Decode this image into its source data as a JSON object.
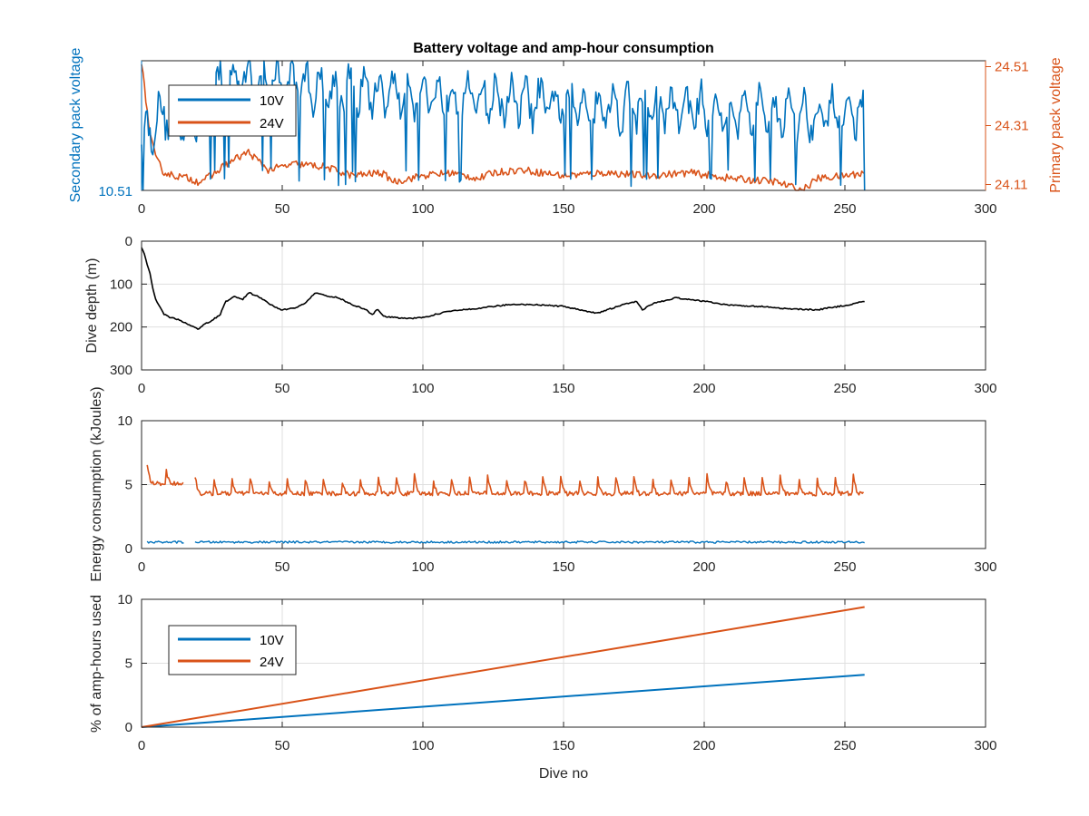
{
  "colors": {
    "blue": "#0072BD",
    "orange": "#D95319",
    "black": "#000000",
    "grid": "#dfdfdf",
    "axis": "#262626"
  },
  "chart_data": [
    {
      "type": "line",
      "title": "Battery voltage and amp-hour consumption",
      "xlim": [
        0,
        300
      ],
      "x_ticks": [
        "0",
        "50",
        "100",
        "150",
        "200",
        "250",
        "300"
      ],
      "grid": false,
      "legend": {
        "placement": "top-left",
        "entries": [
          "10V",
          "24V"
        ]
      },
      "y_left": {
        "label": "Secondary pack voltage",
        "ylim": [
          10.51,
          10.56
        ],
        "tick_labels": [
          "10.51"
        ],
        "color": "#0072BD"
      },
      "y_right": {
        "label": "Primary pack voltage",
        "ylim": [
          24.09,
          24.53
        ],
        "tick_labels": [
          "24.11",
          "24.31",
          "24.51"
        ],
        "color": "#D95319"
      },
      "series": [
        {
          "name": "10V",
          "axis": "left",
          "color": "#0072BD",
          "style": "noisy-oscillating",
          "x": [
            0,
            3,
            6,
            10,
            14,
            18,
            22,
            25,
            30,
            40,
            50,
            60,
            80,
            100,
            120,
            135,
            150,
            175,
            200,
            225,
            240,
            257
          ],
          "y": [
            10.532,
            10.534,
            10.538,
            10.54,
            10.535,
            10.537,
            10.542,
            10.548,
            10.552,
            10.553,
            10.551,
            10.55,
            10.548,
            10.547,
            10.546,
            10.544,
            10.543,
            10.542,
            10.541,
            10.54,
            10.539,
            10.54
          ],
          "amplitude": 0.012,
          "period_dives": 5.2,
          "min": 10.51,
          "max": 10.56
        },
        {
          "name": "24V",
          "axis": "right",
          "color": "#D95319",
          "style": "noisy",
          "x": [
            0,
            1,
            3,
            5,
            8,
            12,
            17,
            20,
            25,
            30,
            38,
            45,
            55,
            65,
            75,
            85,
            90,
            100,
            110,
            120,
            125,
            135,
            150,
            165,
            180,
            195,
            210,
            225,
            235,
            240,
            250,
            257
          ],
          "y": [
            24.52,
            24.44,
            24.28,
            24.2,
            24.15,
            24.14,
            24.13,
            24.12,
            24.14,
            24.18,
            24.22,
            24.16,
            24.18,
            24.17,
            24.14,
            24.15,
            24.12,
            24.14,
            24.15,
            24.13,
            24.15,
            24.16,
            24.14,
            24.15,
            24.14,
            24.15,
            24.13,
            24.12,
            24.09,
            24.13,
            24.14,
            24.15
          ]
        }
      ]
    },
    {
      "type": "line",
      "title": "",
      "xlim": [
        0,
        300
      ],
      "ylim": [
        0,
        300
      ],
      "y_reversed": true,
      "x_ticks": [
        "0",
        "50",
        "100",
        "150",
        "200",
        "250",
        "300"
      ],
      "y_ticks": [
        "0",
        "100",
        "200",
        "300"
      ],
      "ylabel": "Dive depth (m)",
      "grid": true,
      "series": [
        {
          "color": "#000000",
          "x": [
            0,
            1,
            2,
            3,
            4,
            5,
            6,
            8,
            10,
            13,
            16,
            18,
            20,
            22,
            25,
            28,
            30,
            33,
            36,
            38,
            40,
            43,
            45,
            48,
            50,
            55,
            58,
            62,
            66,
            70,
            75,
            80,
            82,
            84,
            86,
            90,
            95,
            100,
            110,
            120,
            130,
            140,
            150,
            162,
            170,
            176,
            178,
            182,
            190,
            200,
            210,
            220,
            230,
            240,
            250,
            257
          ],
          "y": [
            15,
            30,
            55,
            75,
            110,
            135,
            148,
            170,
            178,
            182,
            192,
            198,
            205,
            195,
            185,
            170,
            140,
            130,
            135,
            120,
            125,
            135,
            145,
            155,
            160,
            155,
            145,
            120,
            128,
            132,
            148,
            160,
            172,
            158,
            175,
            178,
            180,
            178,
            162,
            156,
            148,
            148,
            152,
            168,
            150,
            140,
            160,
            145,
            132,
            140,
            150,
            152,
            158,
            160,
            150,
            140
          ]
        }
      ]
    },
    {
      "type": "line",
      "title": "",
      "xlim": [
        0,
        300
      ],
      "ylim": [
        0,
        10
      ],
      "x_ticks": [
        "0",
        "50",
        "100",
        "150",
        "200",
        "250",
        "300"
      ],
      "y_ticks": [
        "0",
        "5",
        "10"
      ],
      "ylabel": "Energy consumption (kJoules)",
      "grid": true,
      "series": [
        {
          "name": "10V",
          "color": "#0072BD",
          "style": "low-noise",
          "segments": [
            [
              2,
              15
            ],
            [
              19,
              257
            ]
          ],
          "mean": 0.5,
          "amplitude": 0.08
        },
        {
          "name": "24V",
          "color": "#D95319",
          "style": "periodic-spikes",
          "segments": [
            [
              2,
              15
            ],
            [
              19,
              257
            ]
          ],
          "base": 4.3,
          "peak": 5.7,
          "period_dives": 6.5
        }
      ]
    },
    {
      "type": "line",
      "title": "",
      "xlim": [
        0,
        300
      ],
      "ylim": [
        0,
        10
      ],
      "x_ticks": [
        "0",
        "50",
        "100",
        "150",
        "200",
        "250",
        "300"
      ],
      "y_ticks": [
        "0",
        "5",
        "10"
      ],
      "xlabel": "Dive no",
      "ylabel": "% of amp-hours used",
      "grid": true,
      "legend": {
        "placement": "top-left",
        "entries": [
          "10V",
          "24V"
        ]
      },
      "series": [
        {
          "name": "10V",
          "color": "#0072BD",
          "x": [
            0,
            257
          ],
          "y": [
            0,
            4.1
          ]
        },
        {
          "name": "24V",
          "color": "#D95319",
          "x": [
            0,
            257
          ],
          "y": [
            0,
            9.4
          ]
        }
      ]
    }
  ]
}
